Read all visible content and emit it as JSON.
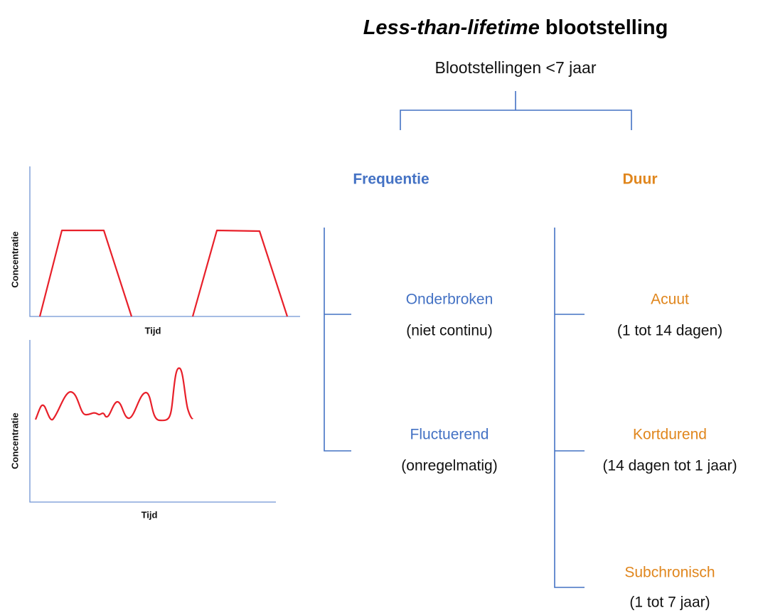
{
  "title": {
    "emphasis": "Less-than-lifetime",
    "rest": "blootstelling"
  },
  "subtitle": "Blootstellingen <7 jaar",
  "frequency": {
    "heading": "Frequentie",
    "items": [
      {
        "label": "Onderbroken",
        "note": "(niet continu)"
      },
      {
        "label": "Fluctuerend",
        "note": "(onregelmatig)"
      }
    ]
  },
  "duration": {
    "heading": "Duur",
    "items": [
      {
        "label": "Acuut",
        "note": "(1 tot 14 dagen)"
      },
      {
        "label": "Kortdurend",
        "note": "(14 dagen tot 1 jaar)"
      },
      {
        "label": "Subchronisch",
        "note": "(1 tot 7 jaar)"
      }
    ]
  },
  "graphs": [
    {
      "x_label": "Tijd",
      "y_label": "Concentratie"
    },
    {
      "x_label": "Tijd",
      "y_label": "Concentratie"
    }
  ]
}
